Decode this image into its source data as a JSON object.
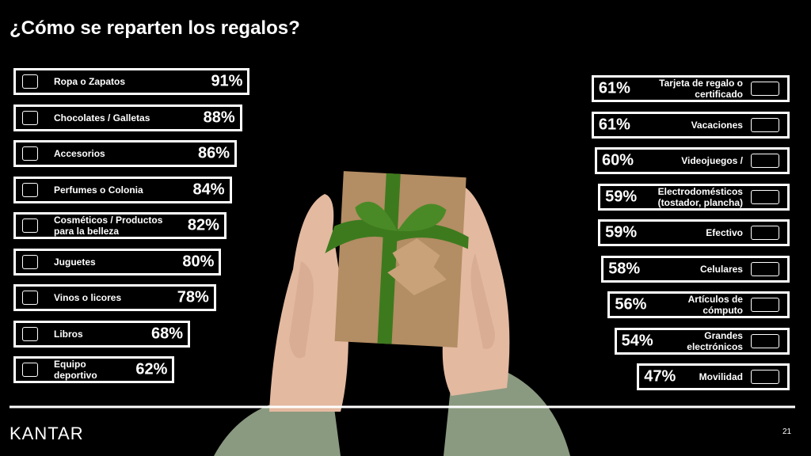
{
  "title": "¿Cómo se reparten los regalos?",
  "chart_data": [
    {
      "type": "bar",
      "orientation": "horizontal",
      "color": "#ffffff",
      "categories": [
        "Ropa o Zapatos",
        "Chocolates / Galletas",
        "Accesorios",
        "Perfumes o Colonia",
        "Cosméticos / Productos\npara la belleza",
        "Juguetes",
        "Vinos o licores",
        "Libros",
        "Equipo\ndeportivo"
      ],
      "values": [
        91,
        88,
        86,
        84,
        82,
        80,
        78,
        68,
        62
      ],
      "value_labels": [
        "91%",
        "88%",
        "86%",
        "84%",
        "82%",
        "80%",
        "78%",
        "68%",
        "62%"
      ]
    },
    {
      "type": "bar",
      "orientation": "horizontal",
      "color": "#ffffff",
      "categories": [
        "Tarjeta de regalo o\ncertificado",
        "Vacaciones",
        "Videojuegos /",
        "Electrodomésticos\n(tostador, plancha)",
        "Efectivo",
        "Celulares",
        "Artículos de\ncómputo",
        "Grandes\nelectrónicos",
        "Movilidad"
      ],
      "values": [
        61,
        61,
        60,
        59,
        59,
        58,
        56,
        54,
        47
      ],
      "value_labels": [
        "61%",
        "61%",
        "60%",
        "59%",
        "59%",
        "58%",
        "56%",
        "54%",
        "47%"
      ]
    }
  ],
  "footer": {
    "brand": "KANTAR",
    "page": 21
  }
}
